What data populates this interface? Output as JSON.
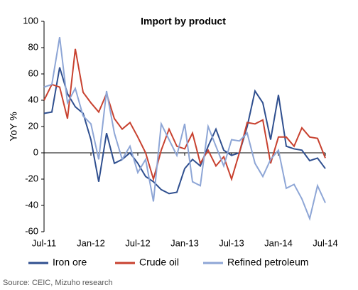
{
  "chart_data": {
    "type": "line",
    "title": "Import by product",
    "y_label": "YoY %",
    "source": "Source: CEIC, Mizuho research",
    "categories": [
      "Jul-11",
      null,
      null,
      null,
      null,
      null,
      "Jan-12",
      null,
      null,
      null,
      null,
      null,
      "Jul-12",
      null,
      null,
      null,
      null,
      null,
      "Jan-13",
      null,
      null,
      null,
      null,
      null,
      "Jul-13",
      null,
      null,
      null,
      null,
      null,
      "Jan-14",
      null,
      null,
      null,
      null,
      null,
      "Jul-14"
    ],
    "series": [
      {
        "name": "Iron ore",
        "color": "#2f4f8f",
        "values": [
          30,
          31,
          65,
          45,
          35,
          30,
          10,
          -22,
          15,
          -8,
          -5,
          0,
          -8,
          -18,
          -22,
          -28,
          -31,
          -30,
          -12,
          -5,
          -10,
          5,
          18,
          2,
          -2,
          0,
          20,
          47,
          38,
          10,
          44,
          5,
          3,
          2,
          -6,
          -4,
          -12
        ]
      },
      {
        "name": "Crude oil",
        "color": "#c8412f",
        "values": [
          40,
          52,
          50,
          26,
          79,
          46,
          38,
          31,
          45,
          26,
          18,
          23,
          12,
          0,
          -20,
          2,
          18,
          5,
          3,
          15,
          -8,
          2,
          -10,
          -3,
          -20,
          0,
          23,
          22,
          25,
          -8,
          12,
          12,
          5,
          19,
          12,
          11,
          -4
        ]
      },
      {
        "name": "Refined petroleum",
        "color": "#8ea6d6",
        "values": [
          50,
          52,
          88,
          38,
          49,
          28,
          22,
          -5,
          47,
          15,
          -5,
          5,
          -15,
          -5,
          -37,
          22,
          10,
          -2,
          22,
          -22,
          -25,
          20,
          5,
          -10,
          10,
          9,
          15,
          -8,
          -18,
          -5,
          2,
          -27,
          -24,
          -35,
          -50,
          -25,
          -38
        ]
      }
    ],
    "ylim": [
      -60,
      100
    ],
    "yticks": [
      -60,
      -40,
      -20,
      0,
      20,
      40,
      60,
      80,
      100
    ],
    "legend": "bottom"
  }
}
